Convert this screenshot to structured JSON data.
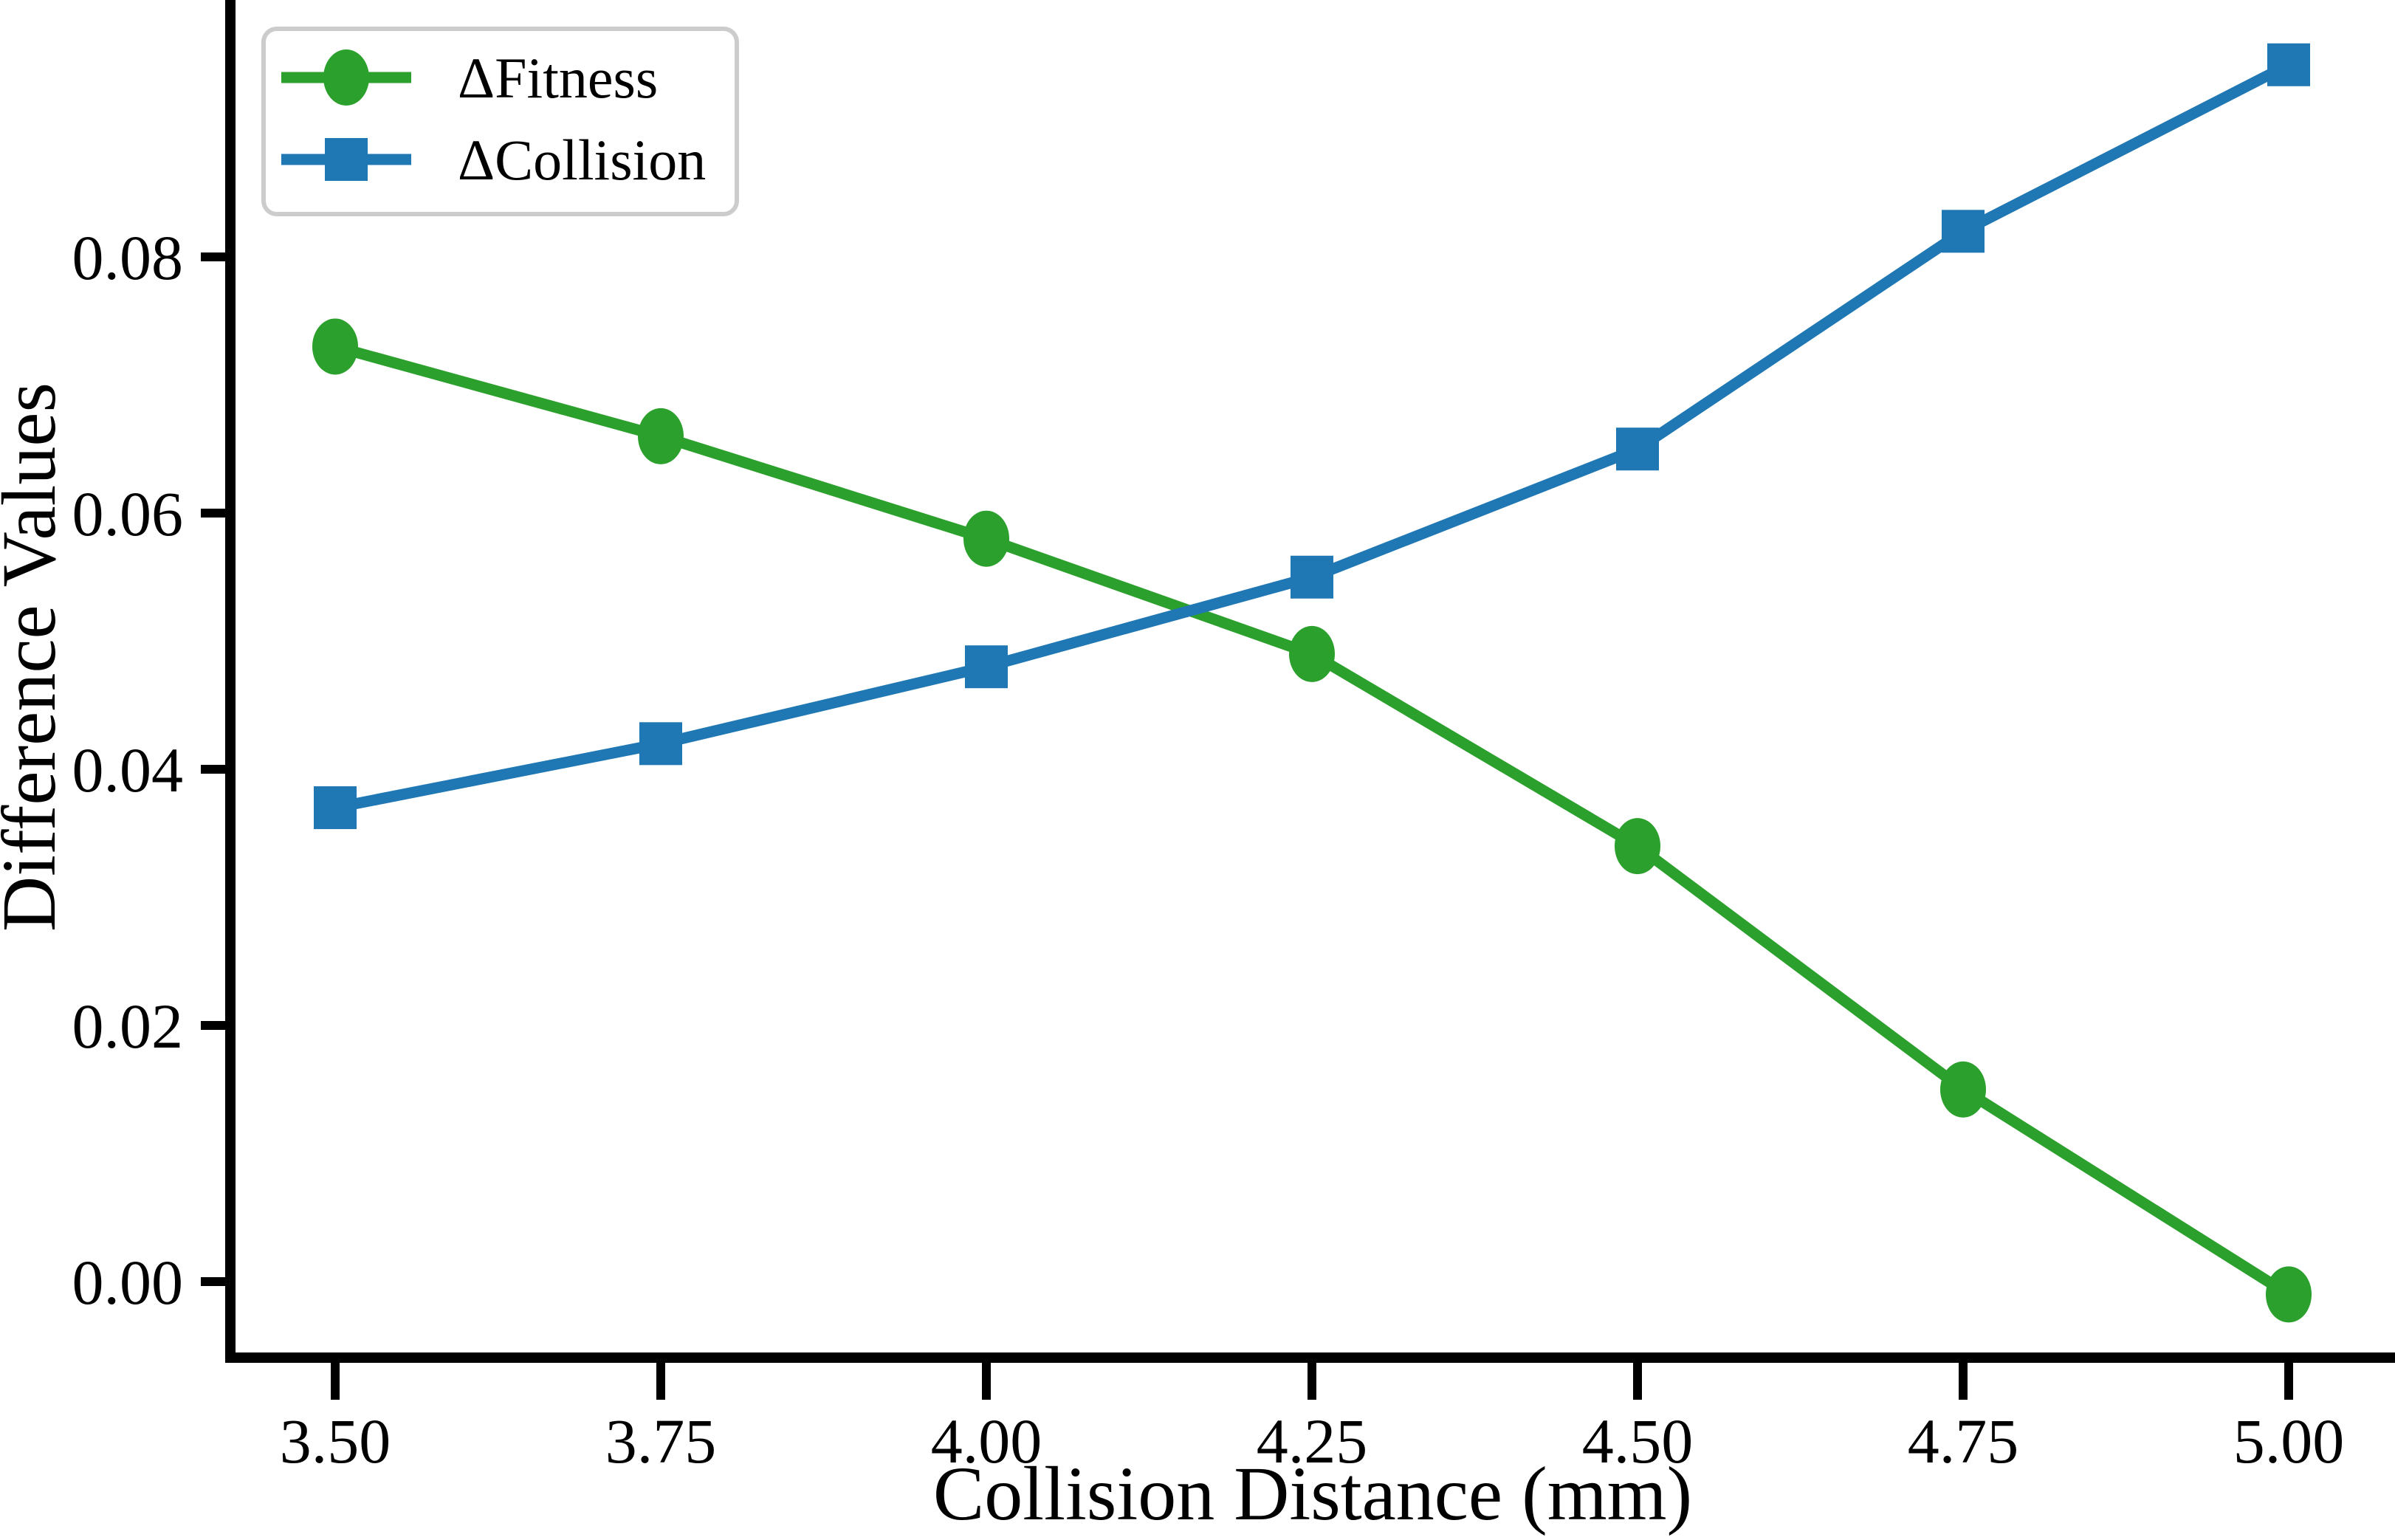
{
  "chart_data": {
    "type": "line",
    "title": "",
    "xlabel": "Collision Distance (mm)",
    "ylabel": "Difference Values",
    "x": [
      3.5,
      3.75,
      4.0,
      4.25,
      4.5,
      4.75,
      5.0
    ],
    "series": [
      {
        "name": "ΔFitness",
        "marker": "circle",
        "color": "#2ca02c",
        "values": [
          0.073,
          0.066,
          0.058,
          0.049,
          0.034,
          0.015,
          -0.001
        ]
      },
      {
        "name": "ΔCollision",
        "marker": "square",
        "color": "#1f77b4",
        "values": [
          0.037,
          0.042,
          0.048,
          0.055,
          0.065,
          0.082,
          0.095
        ]
      }
    ],
    "xticks": [
      {
        "value": 3.5,
        "label": "3.50"
      },
      {
        "value": 3.75,
        "label": "3.75"
      },
      {
        "value": 4.0,
        "label": "4.00"
      },
      {
        "value": 4.25,
        "label": "4.25"
      },
      {
        "value": 4.5,
        "label": "4.50"
      },
      {
        "value": 4.75,
        "label": "4.75"
      },
      {
        "value": 5.0,
        "label": "5.00"
      }
    ],
    "yticks": [
      {
        "value": 0.0,
        "label": "0.00"
      },
      {
        "value": 0.02,
        "label": "0.02"
      },
      {
        "value": 0.04,
        "label": "0.04"
      },
      {
        "value": 0.06,
        "label": "0.06"
      },
      {
        "value": 0.08,
        "label": "0.08"
      }
    ],
    "xlim": [
      3.42,
      5.08
    ],
    "ylim": [
      -0.006,
      0.1
    ],
    "grid": false,
    "legend_position": "top-left",
    "axis_color": "#000000",
    "legend_border_color": "#cccccc"
  }
}
